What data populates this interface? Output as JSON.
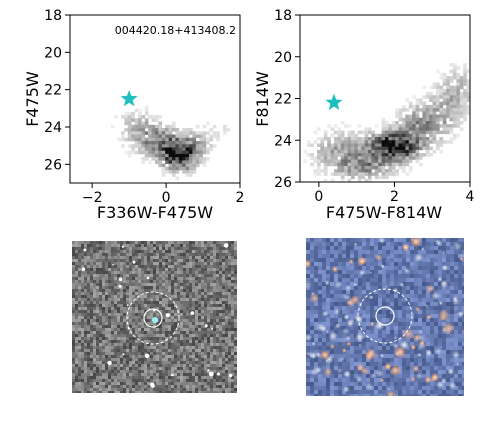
{
  "chart_data": [
    {
      "type": "heatmap",
      "xlabel": "F336W-F475W",
      "ylabel": "F475W",
      "xlim": [
        -2.6,
        2.0
      ],
      "ylim": [
        27.0,
        18.0
      ],
      "y_inverted": true,
      "xticks": [
        -2,
        0,
        2
      ],
      "yticks": [
        18,
        20,
        22,
        24,
        26
      ],
      "annotation": "004420.18+413408.2",
      "star": {
        "x": -1.0,
        "y": 22.5,
        "color": "#1fbfbf"
      },
      "density_components": [
        {
          "x": 0.35,
          "y": 25.5,
          "sx": 0.32,
          "sy": 0.55,
          "w": 1.0
        },
        {
          "x": -0.3,
          "y": 24.7,
          "sx": 0.45,
          "sy": 0.6,
          "w": 0.45
        },
        {
          "x": -0.8,
          "y": 23.8,
          "sx": 0.35,
          "sy": 0.5,
          "w": 0.2
        },
        {
          "x": 0.9,
          "y": 24.8,
          "sx": 0.35,
          "sy": 0.5,
          "w": 0.2
        },
        {
          "x": 1.5,
          "y": 24.0,
          "sx": 0.25,
          "sy": 0.4,
          "w": 0.08
        }
      ],
      "grid": false
    },
    {
      "type": "heatmap",
      "xlabel": "F475W-F814W",
      "ylabel": "F814W",
      "xlim": [
        -0.5,
        4.0
      ],
      "ylim": [
        26.0,
        18.0
      ],
      "y_inverted": true,
      "xticks": [
        0,
        2,
        4
      ],
      "yticks": [
        18,
        20,
        22,
        24,
        26
      ],
      "star": {
        "x": 0.4,
        "y": 22.2,
        "color": "#1fbfbf"
      },
      "density_components": [
        {
          "x": 2.0,
          "y": 24.3,
          "sx": 0.45,
          "sy": 0.45,
          "w": 1.0
        },
        {
          "x": 2.8,
          "y": 23.2,
          "sx": 0.5,
          "sy": 0.6,
          "w": 0.45
        },
        {
          "x": 3.5,
          "y": 22.0,
          "sx": 0.4,
          "sy": 0.7,
          "w": 0.25
        },
        {
          "x": 0.6,
          "y": 24.6,
          "sx": 0.55,
          "sy": 0.7,
          "w": 0.35
        },
        {
          "x": 1.3,
          "y": 25.3,
          "sx": 0.5,
          "sy": 0.4,
          "w": 0.35
        },
        {
          "x": 3.8,
          "y": 21.0,
          "sx": 0.3,
          "sy": 0.6,
          "w": 0.12
        }
      ],
      "grid": false
    }
  ],
  "images": [
    {
      "style": "grayscale-noise",
      "circle_color": "#ffffff"
    },
    {
      "style": "color-starfield",
      "circle_color": "#ffffff"
    }
  ]
}
